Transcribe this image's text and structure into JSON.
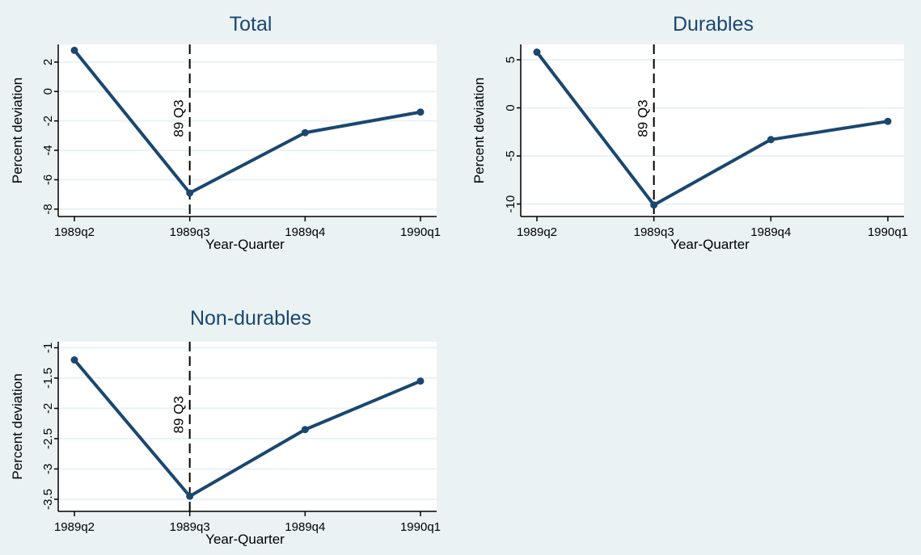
{
  "colors": {
    "background": "#eaf2f3",
    "plot_area": "#ffffff",
    "line": "#1a476f",
    "gridline": "#eaf2f3",
    "title": "#1a476f"
  },
  "chart_data": [
    {
      "type": "line",
      "title": "Total",
      "xlabel": "Year-Quarter",
      "ylabel": "Percent deviation",
      "categories": [
        "1989q2",
        "1989q3",
        "1989q4",
        "1990q1"
      ],
      "values": [
        2.8,
        -6.9,
        -2.8,
        -1.4
      ],
      "yticks": [
        "-8",
        "-6",
        "-4",
        "-2",
        "0",
        "2"
      ],
      "ylim": [
        -8.5,
        3.2
      ],
      "grid": true,
      "vline": {
        "at": "1989q3",
        "label": "89 Q3"
      }
    },
    {
      "type": "line",
      "title": "Durables",
      "xlabel": "Year-Quarter",
      "ylabel": "Percent deviation",
      "categories": [
        "1989q2",
        "1989q3",
        "1989q4",
        "1990q1"
      ],
      "values": [
        5.8,
        -10.1,
        -3.3,
        -1.4
      ],
      "yticks": [
        "-10",
        "-5",
        "0",
        "5"
      ],
      "ylim": [
        -11.3,
        6.6
      ],
      "grid": true,
      "vline": {
        "at": "1989q3",
        "label": "89 Q3"
      }
    },
    {
      "type": "line",
      "title": "Non-durables",
      "xlabel": "Year-Quarter",
      "ylabel": "Percent deviation",
      "categories": [
        "1989q2",
        "1989q3",
        "1989q4",
        "1990q1"
      ],
      "values": [
        -1.2,
        -3.45,
        -2.35,
        -1.55
      ],
      "yticks": [
        "-3.5",
        "-3",
        "-2.5",
        "-2",
        "-1.5",
        "-1"
      ],
      "ylim": [
        -3.7,
        -0.9
      ],
      "grid": true,
      "vline": {
        "at": "1989q3",
        "label": "89 Q3"
      }
    }
  ]
}
